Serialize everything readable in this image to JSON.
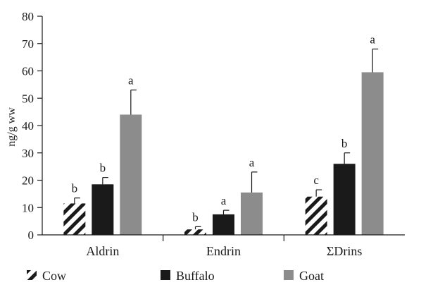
{
  "chart_data": {
    "type": "bar",
    "ylabel": "ng/g ww",
    "ylim": [
      0,
      80
    ],
    "yticks": [
      0,
      10,
      20,
      30,
      40,
      50,
      60,
      70,
      80
    ],
    "categories": [
      "Aldrin",
      "Endrin",
      "ΣDrins"
    ],
    "series": [
      {
        "name": "Cow",
        "values": [
          11.5,
          2.0,
          14.0
        ],
        "errors": [
          2.0,
          1.0,
          2.5
        ],
        "letters": [
          "b",
          "b",
          "c"
        ],
        "color": "#1a1a1a",
        "pattern": "diagonal-hatch"
      },
      {
        "name": "Buffalo",
        "values": [
          18.5,
          7.5,
          26.0
        ],
        "errors": [
          2.5,
          1.5,
          4.0
        ],
        "letters": [
          "b",
          "a",
          "b"
        ],
        "color": "#1a1a1a",
        "pattern": "solid"
      },
      {
        "name": "Goat",
        "values": [
          44.0,
          15.5,
          59.5
        ],
        "errors": [
          9.0,
          7.5,
          8.5
        ],
        "letters": [
          "a",
          "a",
          "a"
        ],
        "color": "#8c8c8c",
        "pattern": "solid"
      }
    ],
    "legend_position": "bottom",
    "grid": false
  }
}
